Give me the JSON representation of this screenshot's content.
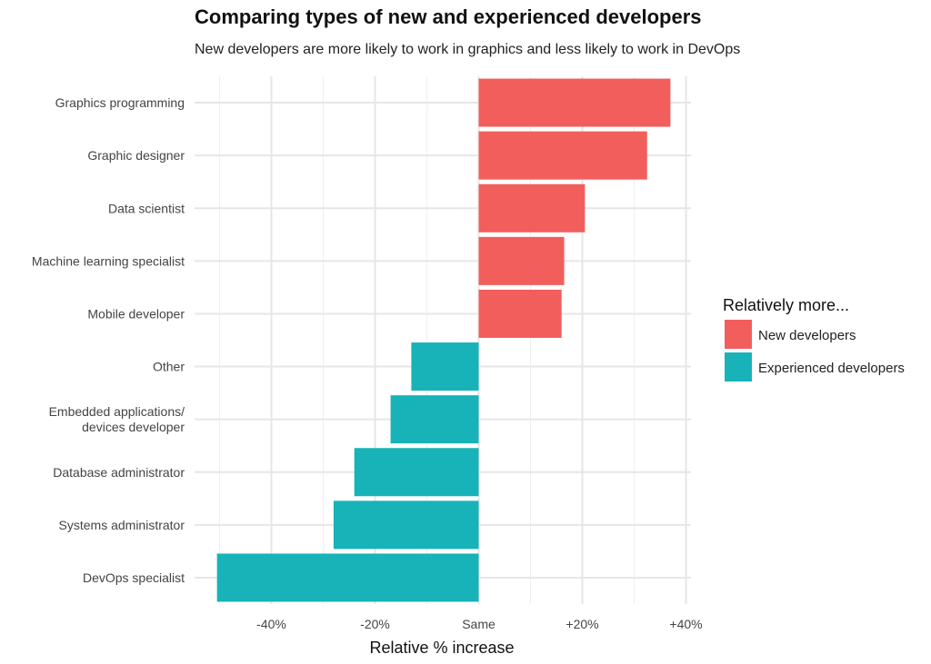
{
  "chart_data": {
    "type": "bar",
    "orientation": "horizontal",
    "title": "Comparing types of new and experienced developers",
    "subtitle": "New developers are more likely to work in graphics and less likely to work in DevOps",
    "xlabel": "Relative % increase",
    "ylabel": "",
    "xlim": [
      -52,
      43
    ],
    "x_ticks": [
      {
        "value": -40,
        "label": "-40%"
      },
      {
        "value": -20,
        "label": "-20%"
      },
      {
        "value": 0,
        "label": "Same"
      },
      {
        "value": 20,
        "label": "+20%"
      },
      {
        "value": 40,
        "label": "+40%"
      }
    ],
    "grid": true,
    "categories": [
      [
        "Graphics programming"
      ],
      [
        "Graphic designer"
      ],
      [
        "Data scientist"
      ],
      [
        "Machine learning specialist"
      ],
      [
        "Mobile developer"
      ],
      [
        "Other"
      ],
      [
        "Embedded applications/",
        "devices developer"
      ],
      [
        "Database administrator"
      ],
      [
        "Systems administrator"
      ],
      [
        "DevOps specialist"
      ]
    ],
    "values": [
      37,
      32.5,
      20.5,
      16.5,
      16,
      -13,
      -17,
      -24,
      -28,
      -50.5
    ],
    "legend": {
      "title": "Relatively more...",
      "placement": "right",
      "entries": [
        {
          "label": "New developers",
          "color": "#F25E5C"
        },
        {
          "label": "Experienced developers",
          "color": "#17B3B8"
        }
      ]
    }
  }
}
